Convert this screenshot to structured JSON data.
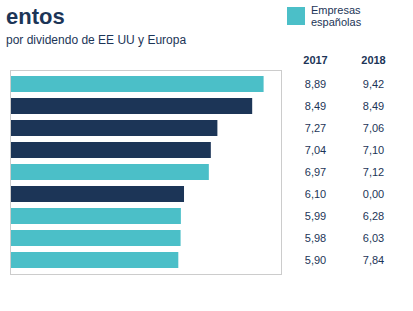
{
  "chart_data": {
    "type": "bar",
    "orientation": "horizontal",
    "title": "entos",
    "subtitle": "por dividendo de EE UU y Europa",
    "categories": [
      null,
      null,
      null,
      null,
      null,
      null,
      null,
      null,
      null
    ],
    "series": [
      {
        "name": "2017",
        "values": [
          8.89,
          8.49,
          7.27,
          7.04,
          6.97,
          6.1,
          5.99,
          5.98,
          5.9
        ],
        "colors": [
          "#4bbfc8",
          "#1c3557",
          "#1c3557",
          "#1c3557",
          "#4bbfc8",
          "#1c3557",
          "#4bbfc8",
          "#4bbfc8",
          "#4bbfc8"
        ],
        "value_labels": [
          "8,89",
          "8,49",
          "7,27",
          "7,04",
          "6,97",
          "6,10",
          "5,99",
          "5,98",
          "5,90"
        ]
      },
      {
        "name": "2018",
        "type": "text",
        "values": [
          9.42,
          8.49,
          7.06,
          7.1,
          7.12,
          0.0,
          6.28,
          6.03,
          7.84
        ],
        "value_labels": [
          "9,42",
          "8,49",
          "7,06",
          "7,10",
          "7,12",
          "0,00",
          "6,28",
          "6,03",
          "7,84"
        ]
      }
    ],
    "legend": "top-right",
    "legend_items": [
      {
        "name": "Empresas españolas",
        "color": "#4bbfc8"
      }
    ],
    "xlim": [
      0,
      9.5
    ],
    "data_labels": true,
    "tick_labels": false,
    "grid": false
  }
}
